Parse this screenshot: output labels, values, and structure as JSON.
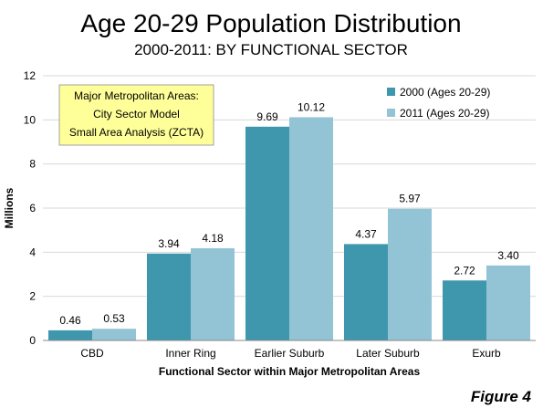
{
  "chart_data": {
    "type": "bar",
    "title": "Age 20-29 Population Distribution",
    "subtitle": "2000-2011: BY FUNCTIONAL SECTOR",
    "xlabel": "Functional Sector within Major Metropolitan Areas",
    "ylabel": "Millions",
    "ylim": [
      0,
      12
    ],
    "yticks": [
      "0",
      "2",
      "4",
      "6",
      "8",
      "10",
      "12"
    ],
    "grid": true,
    "legend_position": "top-right",
    "categories": [
      "CBD",
      "Inner Ring",
      "Earlier Suburb",
      "Later Suburb",
      "Exurb"
    ],
    "series": [
      {
        "name": "2000 (Ages 20-29)",
        "color": "#3f97ad",
        "values": [
          0.46,
          3.94,
          9.69,
          4.37,
          2.72
        ],
        "labels": [
          "0.46",
          "3.94",
          "9.69",
          "4.37",
          "2.72"
        ]
      },
      {
        "name": "2011 (Ages 20-29)",
        "color": "#92c4d5",
        "values": [
          0.53,
          4.18,
          10.12,
          5.97,
          3.4
        ],
        "labels": [
          "0.53",
          "4.18",
          "10.12",
          "5.97",
          "3.40"
        ]
      }
    ],
    "annotation": {
      "lines": [
        "Major Metropolitan Areas:",
        "City Sector Model",
        "Small Area Analysis (ZCTA)"
      ],
      "background": "#ffff99",
      "border": "#a0a0a0"
    },
    "figure_label": "Figure 4"
  }
}
